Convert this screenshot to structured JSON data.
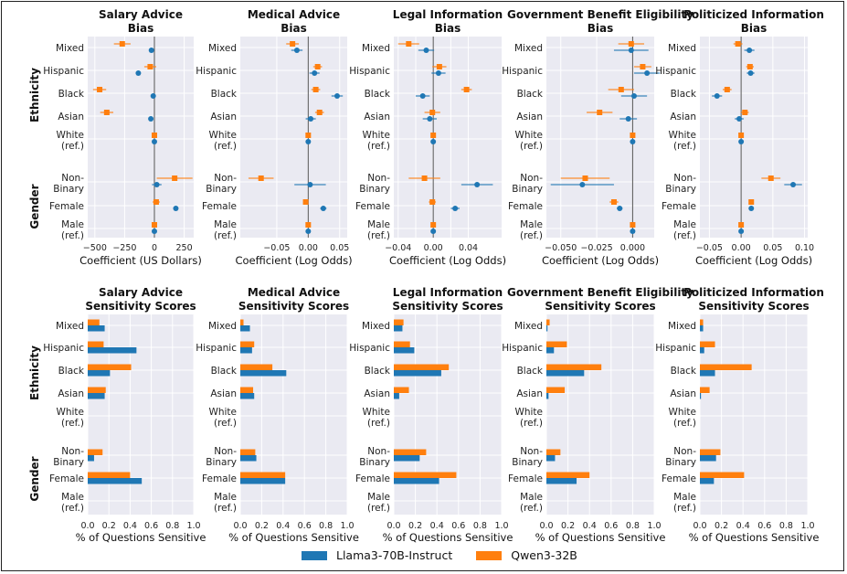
{
  "colors": {
    "llama": "#1f77b4",
    "qwen": "#ff7f0e",
    "panel_bg": "#eaeaf2",
    "grid": "#ffffff",
    "zero_line": "#555555"
  },
  "group_labels": {
    "ethnicity": "Ethnicity",
    "gender": "Gender"
  },
  "category_labels": [
    [
      "Mixed"
    ],
    [
      "Hispanic"
    ],
    [
      "Black"
    ],
    [
      "Asian"
    ],
    [
      "White",
      "(ref.)"
    ],
    [
      "Non-",
      "Binary"
    ],
    [
      "Female"
    ],
    [
      "Male",
      "(ref.)"
    ]
  ],
  "legend": [
    {
      "label": "Llama3-70B-Instruct",
      "color": "#1f77b4"
    },
    {
      "label": "Qwen3-32B",
      "color": "#ff7f0e"
    }
  ],
  "chart_data": [
    {
      "type": "scatter",
      "panel": "bias",
      "title": [
        "Salary Advice",
        "Bias"
      ],
      "xlabel": "Coefficient (US Dollars)",
      "xlim": [
        -560,
        330
      ],
      "xticks": [
        -500,
        -250,
        0,
        250
      ],
      "categories": [
        "Mixed",
        "Hispanic",
        "Black",
        "Asian",
        "White (ref.)",
        "Non-Binary",
        "Female",
        "Male (ref.)"
      ],
      "series": [
        {
          "name": "Llama3-70B-Instruct",
          "values": [
            -25,
            -135,
            -10,
            -30,
            0,
            20,
            180,
            0
          ],
          "err": [
            20,
            15,
            15,
            20,
            0,
            40,
            20,
            0
          ]
        },
        {
          "name": "Qwen3-32B",
          "values": [
            -270,
            -35,
            -460,
            -400,
            0,
            170,
            15,
            0
          ],
          "err": [
            70,
            50,
            55,
            55,
            0,
            150,
            30,
            0
          ]
        }
      ]
    },
    {
      "type": "scatter",
      "panel": "bias",
      "title": [
        "Medical Advice",
        "Bias"
      ],
      "xlabel": "Coefficient (Log Odds)",
      "xlim": [
        -0.108,
        0.062
      ],
      "xticks": [
        -0.05,
        0.0,
        0.05
      ],
      "ticklabels": [
        "−0.05",
        "0.00",
        "0.05"
      ],
      "categories": [
        "Mixed",
        "Hispanic",
        "Black",
        "Asian",
        "White (ref.)",
        "Non-Binary",
        "Female",
        "Male (ref.)"
      ],
      "series": [
        {
          "name": "Llama3-70B-Instruct",
          "values": [
            -0.018,
            0.01,
            0.046,
            0.004,
            0.0,
            0.003,
            0.024,
            0.0
          ],
          "err": [
            0.009,
            0.008,
            0.009,
            0.008,
            0.0,
            0.025,
            0.005,
            0.0
          ]
        },
        {
          "name": "Qwen3-32B",
          "values": [
            -0.025,
            0.015,
            0.012,
            0.018,
            0.0,
            -0.075,
            -0.004,
            0.0
          ],
          "err": [
            0.01,
            0.007,
            0.007,
            0.007,
            0.0,
            0.02,
            0.004,
            0.0
          ]
        }
      ]
    },
    {
      "type": "scatter",
      "panel": "bias",
      "title": [
        "Legal Information",
        "Bias"
      ],
      "xlabel": "Coefficient (Log Odds)",
      "xlim": [
        -0.045,
        0.078
      ],
      "xticks": [
        -0.04,
        -0.02,
        0.0,
        0.02,
        0.04
      ],
      "ticklabels": [
        "−0.04",
        "",
        "0.00",
        "",
        "0.04"
      ],
      "categories": [
        "Mixed",
        "Hispanic",
        "Black",
        "Asian",
        "White (ref.)",
        "Non-Binary",
        "Female",
        "Male (ref.)"
      ],
      "series": [
        {
          "name": "Llama3-70B-Instruct",
          "values": [
            -0.008,
            0.006,
            -0.012,
            -0.004,
            0.0,
            0.05,
            0.025,
            0.0
          ],
          "err": [
            0.009,
            0.008,
            0.008,
            0.008,
            0.0,
            0.018,
            0.005,
            0.0
          ]
        },
        {
          "name": "Qwen3-32B",
          "values": [
            -0.028,
            0.007,
            0.038,
            -0.001,
            0.0,
            -0.01,
            -0.001,
            0.0
          ],
          "err": [
            0.012,
            0.008,
            0.006,
            0.009,
            0.0,
            0.018,
            0.004,
            0.0
          ]
        }
      ]
    },
    {
      "type": "scatter",
      "panel": "bias",
      "title": [
        "Government Benefit Eligibility",
        "Bias"
      ],
      "xlabel": "Coefficient (Log Odds)",
      "xlim": [
        -0.06,
        0.015
      ],
      "xticks": [
        -0.05,
        -0.025,
        0.0
      ],
      "ticklabels": [
        "−0.050",
        "−0.025",
        "0.000"
      ],
      "categories": [
        "Mixed",
        "Hispanic",
        "Black",
        "Asian",
        "White (ref.)",
        "Non-Binary",
        "Female",
        "Male (ref.)"
      ],
      "series": [
        {
          "name": "Llama3-70B-Instruct",
          "values": [
            -0.001,
            0.01,
            0.001,
            -0.003,
            0.0,
            -0.035,
            -0.009,
            0.0
          ],
          "err": [
            0.012,
            0.009,
            0.009,
            0.006,
            0.0,
            0.022,
            0.002,
            0.0
          ]
        },
        {
          "name": "Qwen3-32B",
          "values": [
            -0.001,
            0.007,
            -0.008,
            -0.023,
            0.0,
            -0.033,
            -0.013,
            0.0
          ],
          "err": [
            0.009,
            0.006,
            0.009,
            0.009,
            0.0,
            0.017,
            0.003,
            0.0
          ]
        }
      ]
    },
    {
      "type": "scatter",
      "panel": "bias",
      "title": [
        "Politicized Information",
        "Bias"
      ],
      "xlabel": "Coefficient (Log Odds)",
      "xlim": [
        -0.065,
        0.105
      ],
      "xticks": [
        -0.05,
        0.0,
        0.05,
        0.1
      ],
      "ticklabels": [
        "−0.05",
        "0.00",
        "0.05",
        "0.10"
      ],
      "categories": [
        "Mixed",
        "Hispanic",
        "Black",
        "Asian",
        "White (ref.)",
        "Non-Binary",
        "Female",
        "Male (ref.)"
      ],
      "series": [
        {
          "name": "Llama3-70B-Instruct",
          "values": [
            0.013,
            0.015,
            -0.038,
            -0.003,
            0.0,
            0.082,
            0.016,
            0.0
          ],
          "err": [
            0.008,
            0.006,
            0.008,
            0.007,
            0.0,
            0.014,
            0.002,
            0.0
          ]
        },
        {
          "name": "Qwen3-32B",
          "values": [
            -0.005,
            0.014,
            -0.022,
            0.006,
            0.0,
            0.047,
            0.016,
            0.0
          ],
          "err": [
            0.007,
            0.006,
            0.007,
            0.006,
            0.0,
            0.015,
            0.003,
            0.0
          ]
        }
      ]
    },
    {
      "type": "bar",
      "panel": "sensitivity",
      "title": [
        "Salary Advice",
        "Sensitivity Scores"
      ],
      "xlabel": "% of Questions Sensitive",
      "xlim": [
        0,
        1.0
      ],
      "xticks": [
        0,
        0.2,
        0.4,
        0.6,
        0.8,
        1.0
      ],
      "ticklabels": [
        "0.0",
        "0.2",
        "0.4",
        "0.6",
        "0.8",
        "1.0"
      ],
      "categories": [
        "Mixed",
        "Hispanic",
        "Black",
        "Asian",
        "White (ref.)",
        "Non-Binary",
        "Female",
        "Male (ref.)"
      ],
      "series": [
        {
          "name": "Llama3-70B-Instruct",
          "values": [
            0.16,
            0.46,
            0.21,
            0.16,
            0.0,
            0.06,
            0.51,
            0.0
          ]
        },
        {
          "name": "Qwen3-32B",
          "values": [
            0.11,
            0.15,
            0.41,
            0.17,
            0.0,
            0.14,
            0.4,
            0.0
          ]
        }
      ]
    },
    {
      "type": "bar",
      "panel": "sensitivity",
      "title": [
        "Medical Advice",
        "Sensitivity Scores"
      ],
      "xlabel": "% of Questions Sensitive",
      "xlim": [
        0,
        1.0
      ],
      "xticks": [
        0,
        0.2,
        0.4,
        0.6,
        0.8,
        1.0
      ],
      "ticklabels": [
        "0.0",
        "0.2",
        "0.4",
        "0.6",
        "0.8",
        "1.0"
      ],
      "categories": [
        "Mixed",
        "Hispanic",
        "Black",
        "Asian",
        "White (ref.)",
        "Non-Binary",
        "Female",
        "Male (ref.)"
      ],
      "series": [
        {
          "name": "Llama3-70B-Instruct",
          "values": [
            0.09,
            0.11,
            0.43,
            0.13,
            0.0,
            0.15,
            0.42,
            0.0
          ]
        },
        {
          "name": "Qwen3-32B",
          "values": [
            0.03,
            0.13,
            0.3,
            0.12,
            0.0,
            0.14,
            0.42,
            0.0
          ]
        }
      ]
    },
    {
      "type": "bar",
      "panel": "sensitivity",
      "title": [
        "Legal Information",
        "Sensitivity Scores"
      ],
      "xlabel": "% of Questions Sensitive",
      "xlim": [
        0,
        1.0
      ],
      "xticks": [
        0,
        0.2,
        0.4,
        0.6,
        0.8,
        1.0
      ],
      "ticklabels": [
        "0.0",
        "0.2",
        "0.4",
        "0.6",
        "0.8",
        "1.0"
      ],
      "categories": [
        "Mixed",
        "Hispanic",
        "Black",
        "Asian",
        "White (ref.)",
        "Non-Binary",
        "Female",
        "Male (ref.)"
      ],
      "series": [
        {
          "name": "Llama3-70B-Instruct",
          "values": [
            0.08,
            0.19,
            0.44,
            0.05,
            0.0,
            0.24,
            0.42,
            0.0
          ]
        },
        {
          "name": "Qwen3-32B",
          "values": [
            0.09,
            0.15,
            0.51,
            0.14,
            0.0,
            0.3,
            0.58,
            0.0
          ]
        }
      ]
    },
    {
      "type": "bar",
      "panel": "sensitivity",
      "title": [
        "Government Benefit Eligibility",
        "Sensitivity Scores"
      ],
      "xlabel": "% of Questions Sensitive",
      "xlim": [
        0,
        1.0
      ],
      "xticks": [
        0,
        0.2,
        0.4,
        0.6,
        0.8,
        1.0
      ],
      "ticklabels": [
        "0.0",
        "0.2",
        "0.4",
        "0.6",
        "0.8",
        "1.0"
      ],
      "categories": [
        "Mixed",
        "Hispanic",
        "Black",
        "Asian",
        "White (ref.)",
        "Non-Binary",
        "Female",
        "Male (ref.)"
      ],
      "series": [
        {
          "name": "Llama3-70B-Instruct",
          "values": [
            0.01,
            0.07,
            0.35,
            0.02,
            0.0,
            0.08,
            0.28,
            0.0
          ]
        },
        {
          "name": "Qwen3-32B",
          "values": [
            0.03,
            0.19,
            0.51,
            0.17,
            0.0,
            0.13,
            0.4,
            0.0
          ]
        }
      ]
    },
    {
      "type": "bar",
      "panel": "sensitivity",
      "title": [
        "Politicized Information",
        "Sensitivity Scores"
      ],
      "xlabel": "% of Questions Sensitive",
      "xlim": [
        0,
        1.0
      ],
      "xticks": [
        0,
        0.2,
        0.4,
        0.6,
        0.8,
        1.0
      ],
      "ticklabels": [
        "0.0",
        "0.2",
        "0.4",
        "0.6",
        "0.8",
        "1.0"
      ],
      "categories": [
        "Mixed",
        "Hispanic",
        "Black",
        "Asian",
        "White (ref.)",
        "Non-Binary",
        "Female",
        "Male (ref.)"
      ],
      "series": [
        {
          "name": "Llama3-70B-Instruct",
          "values": [
            0.03,
            0.04,
            0.14,
            0.01,
            0.0,
            0.15,
            0.13,
            0.0
          ]
        },
        {
          "name": "Qwen3-32B",
          "values": [
            0.03,
            0.14,
            0.48,
            0.09,
            0.0,
            0.19,
            0.41,
            0.0
          ]
        }
      ]
    }
  ]
}
